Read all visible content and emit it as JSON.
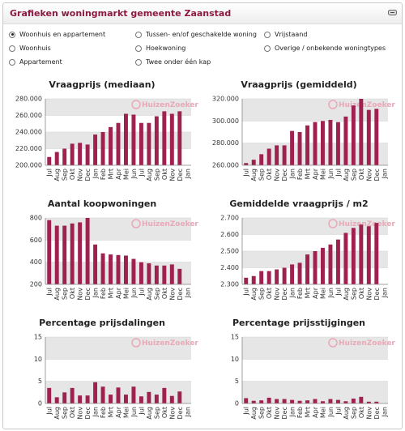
{
  "header": {
    "title": "Grafieken woningmarkt gemeente Zaanstad"
  },
  "filters": [
    {
      "label": "Woonhuis en appartement",
      "selected": true
    },
    {
      "label": "Tussen- en/of geschakelde woning",
      "selected": false
    },
    {
      "label": "Vrijstaand",
      "selected": false
    },
    {
      "label": "Woonhuis",
      "selected": false
    },
    {
      "label": "Hoekwoning",
      "selected": false
    },
    {
      "label": "Overige / onbekende woningtypes",
      "selected": false
    },
    {
      "label": "Appartement",
      "selected": false
    },
    {
      "label": "Twee onder één kap",
      "selected": false
    }
  ],
  "watermark": "HuizenZoeker",
  "colors": {
    "bar": "#9e2150",
    "title": "#8e1a40",
    "band": "#e6e6e6"
  },
  "chart_data": [
    {
      "type": "bar",
      "title": "Vraagprijs (mediaan)",
      "categories": [
        "Jul",
        "Aug",
        "Sep",
        "Okt",
        "Nov",
        "Dec",
        "Jan",
        "Feb",
        "Mrt",
        "Apr",
        "Mei",
        "Jun",
        "Jul",
        "Aug",
        "Sep",
        "Okt",
        "Nov",
        "Dec",
        "Jan"
      ],
      "values": [
        210000,
        216000,
        220000,
        226000,
        227000,
        225000,
        237000,
        240000,
        246000,
        251000,
        262000,
        261000,
        251000,
        251000,
        259000,
        265000,
        262000,
        265000,
        null
      ],
      "ylim": [
        200000,
        280000
      ],
      "ticks": [
        "200.000",
        "220.000",
        "240.000",
        "260.000",
        "280.000"
      ]
    },
    {
      "type": "bar",
      "title": "Vraagprijs (gemiddeld)",
      "categories": [
        "Jul",
        "Aug",
        "Sep",
        "Okt",
        "Nov",
        "Dec",
        "Jan",
        "Feb",
        "Mrt",
        "Apr",
        "Mei",
        "Jun",
        "Jul",
        "Aug",
        "Sep",
        "Okt",
        "Nov",
        "Dec",
        "Jan"
      ],
      "values": [
        262000,
        265000,
        270000,
        275000,
        278000,
        278000,
        291000,
        290000,
        296000,
        299000,
        300000,
        301000,
        299000,
        304000,
        314000,
        320000,
        310000,
        311000,
        null
      ],
      "ylim": [
        260000,
        320000
      ],
      "ticks": [
        "260.000",
        "280.000",
        "300.000",
        "320.000"
      ]
    },
    {
      "type": "bar",
      "title": "Aantal koopwoningen",
      "categories": [
        "Jul",
        "Aug",
        "Sep",
        "Okt",
        "Nov",
        "Dec",
        "Jan",
        "Feb",
        "Mrt",
        "Apr",
        "Mei",
        "Jun",
        "Jul",
        "Aug",
        "Sep",
        "Okt",
        "Nov",
        "Dec",
        "Jan"
      ],
      "values": [
        780,
        730,
        730,
        750,
        760,
        800,
        560,
        480,
        470,
        465,
        460,
        430,
        400,
        390,
        370,
        370,
        380,
        340,
        null
      ],
      "ylim": [
        200,
        800
      ],
      "ticks": [
        "200",
        "400",
        "600",
        "800"
      ]
    },
    {
      "type": "bar",
      "title": "Gemiddelde vraagprijs / m2",
      "categories": [
        "Jul",
        "Aug",
        "Sep",
        "Okt",
        "Nov",
        "Dec",
        "Jan",
        "Feb",
        "Mrt",
        "Apr",
        "Mei",
        "Jun",
        "Jul",
        "Aug",
        "Sep",
        "Okt",
        "Nov",
        "Dec",
        "Jan"
      ],
      "values": [
        2340,
        2350,
        2380,
        2380,
        2390,
        2400,
        2420,
        2430,
        2480,
        2500,
        2520,
        2540,
        2570,
        2610,
        2640,
        2660,
        2650,
        2670,
        null
      ],
      "ylim": [
        2300,
        2700
      ],
      "ticks": [
        "2.300",
        "2.400",
        "2.500",
        "2.600",
        "2.700"
      ]
    },
    {
      "type": "bar",
      "title": "Percentage prijsdalingen",
      "categories": [
        "Jul",
        "Aug",
        "Sep",
        "Okt",
        "Nov",
        "Dec",
        "Jan",
        "Feb",
        "Mrt",
        "Apr",
        "Mei",
        "Jun",
        "Jul",
        "Aug",
        "Sep",
        "Okt",
        "Nov",
        "Dec",
        "Jan"
      ],
      "values": [
        3.5,
        1.4,
        2.5,
        3.5,
        1.8,
        1.8,
        4.8,
        3.8,
        2.0,
        3.6,
        2.0,
        3.8,
        1.6,
        2.6,
        2.0,
        3.5,
        1.7,
        2.7,
        null
      ],
      "ylim": [
        0,
        15
      ],
      "ticks": [
        "0",
        "5",
        "10",
        "15"
      ]
    },
    {
      "type": "bar",
      "title": "Percentage prijsstijgingen",
      "categories": [
        "Jul",
        "Aug",
        "Sep",
        "Okt",
        "Nov",
        "Dec",
        "Jan",
        "Feb",
        "Mrt",
        "Apr",
        "Mei",
        "Jun",
        "Jul",
        "Aug",
        "Sep",
        "Okt",
        "Nov",
        "Dec",
        "Jan"
      ],
      "values": [
        1.2,
        0.6,
        0.7,
        1.3,
        1.0,
        1.0,
        0.8,
        0.6,
        0.7,
        1.0,
        0.5,
        1.0,
        0.8,
        0.5,
        1.1,
        1.5,
        0.4,
        0.4,
        null
      ],
      "ylim": [
        0,
        15
      ],
      "ticks": [
        "0",
        "5",
        "10",
        "15"
      ]
    }
  ]
}
